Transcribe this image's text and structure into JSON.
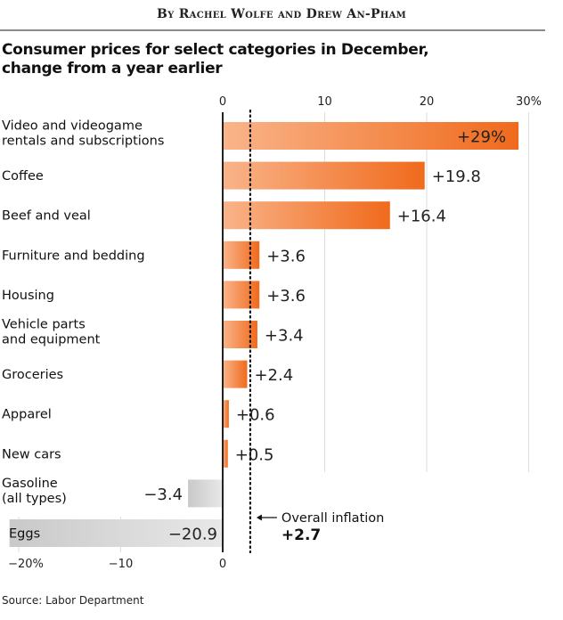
{
  "byline": "By Rachel Wolfe and Drew An-Pham",
  "source": "Source: Labor Department",
  "chart_data": {
    "type": "bar",
    "orientation": "horizontal",
    "title": "Consumer prices for select categories in December, change from a year earlier",
    "title_lines": [
      "Consumer prices for select categories in December,",
      "change from a year earlier"
    ],
    "categories": [
      [
        "Video and videogame",
        "rentals and subscriptions"
      ],
      [
        "Coffee"
      ],
      [
        "Beef and veal"
      ],
      [
        "Furniture and bedding"
      ],
      [
        "Housing"
      ],
      [
        "Vehicle parts",
        "and equipment"
      ],
      [
        "Groceries"
      ],
      [
        "Apparel"
      ],
      [
        "New cars"
      ],
      [
        "Gasoline",
        "(all types)"
      ],
      [
        "Eggs"
      ]
    ],
    "values": [
      29,
      19.8,
      16.4,
      3.6,
      3.6,
      3.4,
      2.4,
      0.6,
      0.5,
      -3.4,
      -20.9
    ],
    "value_labels": [
      "+29%",
      "+19.8",
      "+16.4",
      "+3.6",
      "+3.6",
      "+3.4",
      "+2.4",
      "+0.6",
      "+0.5",
      "−3.4",
      "−20.9"
    ],
    "xlim": [
      -21,
      30
    ],
    "top_ticks": [
      {
        "v": 0,
        "label": "0"
      },
      {
        "v": 10,
        "label": "10"
      },
      {
        "v": 20,
        "label": "20"
      },
      {
        "v": 30,
        "label": "30%"
      }
    ],
    "bottom_ticks": [
      {
        "v": -20,
        "label": "−20%"
      },
      {
        "v": -10,
        "label": "−10"
      },
      {
        "v": 0,
        "label": "0"
      }
    ],
    "reference_line": {
      "value": 2.7,
      "label": "Overall inflation",
      "value_label": "+2.7"
    },
    "colors": {
      "positive_light": "#f9b48a",
      "positive_dark": "#f06a1c",
      "negative_light": "#e8e8e8",
      "negative_dark": "#c9c9c9",
      "axis": "#222222",
      "grid": "#dddddd"
    },
    "grid": true,
    "xlabel": "",
    "ylabel": ""
  }
}
